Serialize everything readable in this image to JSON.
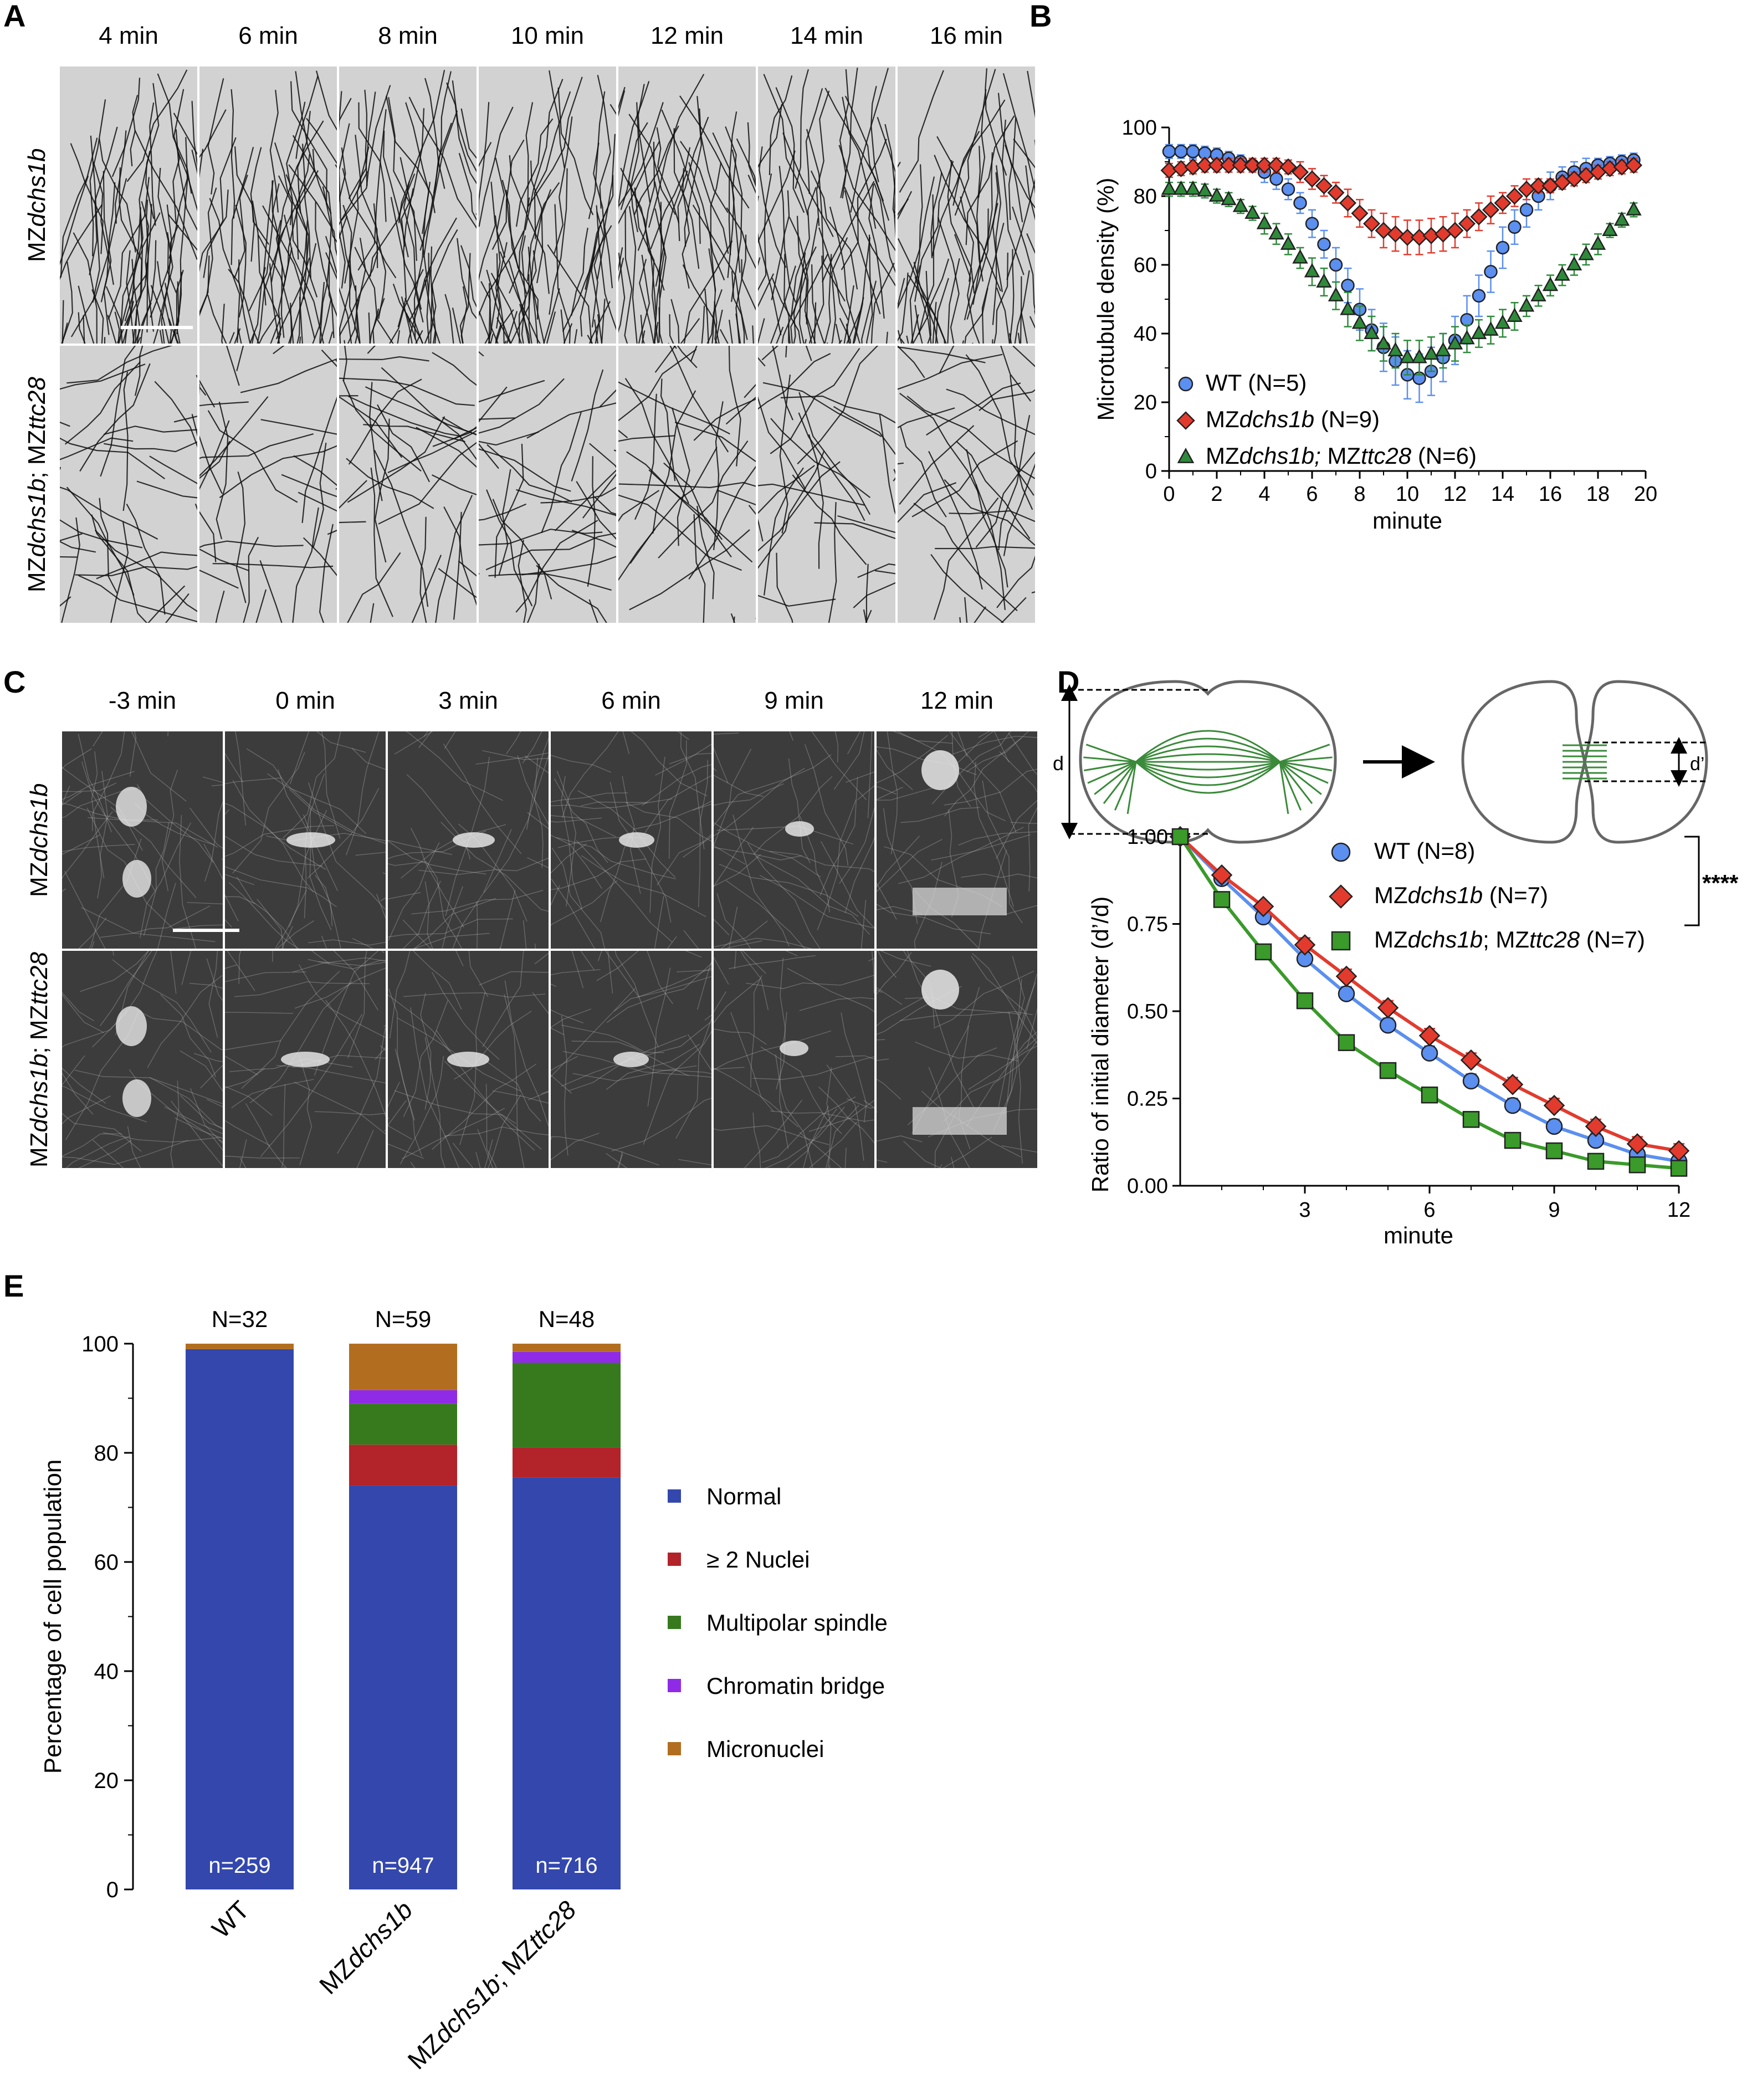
{
  "panels": {
    "A": "A",
    "B": "B",
    "C": "C",
    "D": "D",
    "E": "E"
  },
  "panel_a": {
    "time_labels": [
      "4 min",
      "6 min",
      "8 min",
      "10 min",
      "12 min",
      "14 min",
      "16 min"
    ],
    "rows": [
      {
        "prefix": "MZ",
        "gene": "dchs1b"
      },
      {
        "prefix": "MZ",
        "gene": "dchs1b",
        "sep": "; MZ",
        "gene2": "ttc28"
      }
    ]
  },
  "panel_c": {
    "time_labels": [
      "-3 min",
      "0 min",
      "3 min",
      "6 min",
      "9 min",
      "12 min"
    ],
    "rows": [
      {
        "prefix": "MZ",
        "gene": "dchs1b"
      },
      {
        "prefix": "MZ",
        "gene": "dchs1b",
        "sep": "; MZ",
        "gene2": "ttc28"
      }
    ]
  },
  "chart_data": [
    {
      "panel": "B",
      "type": "scatter",
      "xlabel": "minute",
      "ylabel": "Microtubule density (%)",
      "xlim": [
        0,
        20
      ],
      "ylim": [
        0,
        100
      ],
      "xticks": [
        0,
        2,
        4,
        6,
        8,
        10,
        12,
        14,
        16,
        18,
        20
      ],
      "yticks": [
        0,
        20,
        40,
        60,
        80,
        100
      ],
      "legend_position": "lower-left",
      "series": [
        {
          "name": "WT (N=5)",
          "color": "#5b8ff0",
          "marker": "circle",
          "x": [
            0,
            0.5,
            1,
            1.5,
            2,
            2.5,
            3,
            3.5,
            4,
            4.5,
            5,
            5.5,
            6,
            6.5,
            7,
            7.5,
            8,
            8.5,
            9,
            9.5,
            10,
            10.5,
            11,
            11.5,
            12,
            12.5,
            13,
            13.5,
            14,
            14.5,
            15,
            15.5,
            16,
            16.5,
            17,
            17.5,
            18,
            18.5,
            19,
            19.5
          ],
          "y": [
            93,
            93,
            93,
            92.5,
            92,
            91,
            90,
            89,
            87,
            85,
            82,
            78,
            72,
            66,
            60,
            54,
            47,
            41,
            36,
            32,
            28,
            27,
            29,
            33,
            38,
            44,
            51,
            58,
            65,
            71,
            76,
            80,
            83,
            85.5,
            87,
            88,
            89,
            89.5,
            90,
            90.5
          ],
          "err": [
            2,
            2,
            2,
            2,
            2,
            2,
            2,
            2,
            3,
            3,
            3,
            3,
            4,
            4,
            5,
            5,
            6,
            6,
            7,
            7,
            7,
            7,
            7,
            7,
            7,
            7,
            6,
            6,
            6,
            5,
            5,
            4,
            4,
            3,
            3,
            3,
            2,
            2,
            2,
            2
          ]
        },
        {
          "name": "MZdchs1b (N=9)",
          "name_parts": [
            "MZ",
            "dchs1b",
            " (N=9)"
          ],
          "color": "#e23b2e",
          "marker": "diamond",
          "x": [
            0,
            0.5,
            1,
            1.5,
            2,
            2.5,
            3,
            3.5,
            4,
            4.5,
            5,
            5.5,
            6,
            6.5,
            7,
            7.5,
            8,
            8.5,
            9,
            9.5,
            10,
            10.5,
            11,
            11.5,
            12,
            12.5,
            13,
            13.5,
            14,
            14.5,
            15,
            15.5,
            16,
            16.5,
            17,
            17.5,
            18,
            18.5,
            19,
            19.5
          ],
          "y": [
            87.5,
            88,
            88.5,
            89,
            89,
            89,
            89,
            89,
            89,
            89,
            88.5,
            87,
            85,
            83,
            81,
            78,
            75,
            72,
            70,
            69,
            68,
            68,
            68.5,
            69,
            70,
            72,
            74,
            76,
            78,
            80,
            82,
            83,
            83,
            84,
            85,
            86,
            87,
            88,
            88.5,
            89
          ],
          "err": [
            2,
            2,
            2,
            2,
            2,
            2,
            2,
            2,
            2,
            2,
            2,
            3,
            3,
            3,
            3,
            4,
            4,
            4,
            5,
            5,
            5,
            5,
            5,
            5,
            5,
            4,
            4,
            4,
            3,
            3,
            3,
            2,
            2,
            2,
            2,
            2,
            2,
            2,
            2,
            2
          ]
        },
        {
          "name": "MZdchs1b; MZttc28 (N=6)",
          "name_parts": [
            "MZ",
            "dchs1b; ",
            "MZ",
            "ttc28",
            " (N=6)"
          ],
          "color": "#2e8a3a",
          "marker": "triangle",
          "x": [
            0,
            0.5,
            1,
            1.5,
            2,
            2.5,
            3,
            3.5,
            4,
            4.5,
            5,
            5.5,
            6,
            6.5,
            7,
            7.5,
            8,
            8.5,
            9,
            9.5,
            10,
            10.5,
            11,
            11.5,
            12,
            12.5,
            13,
            13.5,
            14,
            14.5,
            15,
            15.5,
            16,
            16.5,
            17,
            17.5,
            18,
            18.5,
            19,
            19.5
          ],
          "y": [
            82,
            82,
            82,
            81.5,
            80,
            79,
            77,
            75,
            72,
            69,
            66,
            62,
            58,
            55,
            51,
            47,
            43,
            40,
            37,
            35,
            33,
            33,
            34,
            35,
            37,
            38.5,
            40,
            41,
            43,
            45,
            48,
            51,
            54,
            57,
            60,
            63,
            66,
            70,
            73,
            76
          ],
          "err": [
            2,
            2,
            2,
            2,
            2,
            2,
            2,
            2,
            3,
            3,
            3,
            3,
            4,
            4,
            4,
            5,
            5,
            5,
            5,
            5,
            5,
            5,
            5,
            5,
            5,
            4,
            4,
            4,
            4,
            4,
            3,
            3,
            3,
            3,
            3,
            3,
            3,
            2,
            2,
            2
          ]
        }
      ]
    },
    {
      "panel": "D",
      "type": "line",
      "xlabel": "minute",
      "ylabel": "Ratio of initial diameter  (d’/d)",
      "xlim": [
        0,
        12
      ],
      "ylim": [
        0,
        1.0
      ],
      "xticks": [
        3,
        6,
        9,
        12
      ],
      "yticks": [
        0.0,
        0.25,
        0.5,
        0.75,
        1.0
      ],
      "ytick_labels": [
        "0.00",
        "0.25",
        "0.50",
        "0.75",
        "1.00"
      ],
      "legend_position": "top-right",
      "significance": "****",
      "diagram_labels": {
        "d": "d",
        "d_prime": "d’"
      },
      "series": [
        {
          "name": "WT (N=8)",
          "color": "#5b8ff0",
          "marker": "circle",
          "x": [
            0,
            1,
            2,
            3,
            4,
            5,
            6,
            7,
            8,
            9,
            10,
            11,
            12
          ],
          "y": [
            1.0,
            0.88,
            0.77,
            0.65,
            0.55,
            0.46,
            0.38,
            0.3,
            0.23,
            0.17,
            0.13,
            0.09,
            0.07
          ],
          "err": [
            0,
            0.01,
            0.01,
            0.02,
            0.02,
            0.02,
            0.02,
            0.02,
            0.02,
            0.02,
            0.02,
            0.02,
            0.01
          ]
        },
        {
          "name": "MZdchs1b (N=7)",
          "name_parts": [
            "MZ",
            "dchs1b",
            " (N=7)"
          ],
          "color": "#e23b2e",
          "marker": "diamond",
          "x": [
            0,
            1,
            2,
            3,
            4,
            5,
            6,
            7,
            8,
            9,
            10,
            11,
            12
          ],
          "y": [
            1.0,
            0.89,
            0.8,
            0.69,
            0.6,
            0.51,
            0.43,
            0.36,
            0.29,
            0.23,
            0.17,
            0.12,
            0.1
          ],
          "err": [
            0,
            0.01,
            0.01,
            0.02,
            0.02,
            0.02,
            0.02,
            0.02,
            0.02,
            0.02,
            0.02,
            0.02,
            0.02
          ]
        },
        {
          "name": "MZdchs1b; MZttc28 (N=7)",
          "name_parts": [
            "MZ",
            "dchs1b",
            "; MZ",
            "ttc28",
            " (N=7)"
          ],
          "color": "#3a9a2a",
          "marker": "square",
          "x": [
            0,
            1,
            2,
            3,
            4,
            5,
            6,
            7,
            8,
            9,
            10,
            11,
            12
          ],
          "y": [
            1.0,
            0.82,
            0.67,
            0.53,
            0.41,
            0.33,
            0.26,
            0.19,
            0.13,
            0.1,
            0.07,
            0.06,
            0.05
          ],
          "err": [
            0,
            0.01,
            0.01,
            0.02,
            0.02,
            0.02,
            0.01,
            0.01,
            0.01,
            0.01,
            0.01,
            0.01,
            0.01
          ]
        }
      ]
    },
    {
      "panel": "E",
      "type": "bar",
      "stacked": true,
      "ylabel": "Percentage of cell population",
      "ylim": [
        0,
        100
      ],
      "yticks": [
        0,
        20,
        40,
        60,
        80,
        100
      ],
      "categories": [
        "WT",
        "MZdchs1b",
        "MZdchs1b; MZttc28"
      ],
      "category_parts": [
        [
          "WT"
        ],
        [
          "MZ",
          "dchs1b"
        ],
        [
          "MZ",
          "dchs1b",
          "; MZ",
          "ttc28"
        ]
      ],
      "top_labels": [
        "N=32",
        "N=59",
        "N=48"
      ],
      "bottom_labels": [
        "n=259",
        "n=947",
        "n=716"
      ],
      "legend_position": "right",
      "series": [
        {
          "name": "Normal",
          "color": "#3347ad",
          "values": [
            99,
            74,
            75.5
          ]
        },
        {
          "name": "≥ 2 Nuclei",
          "color": "#b3232a",
          "values": [
            0,
            7.5,
            5.5
          ]
        },
        {
          "name": "Multipolar spindle",
          "color": "#377a1e",
          "values": [
            0,
            7.5,
            15.5
          ]
        },
        {
          "name": "Chromatin bridge",
          "color": "#8f2be6",
          "values": [
            0,
            2.5,
            2
          ]
        },
        {
          "name": "Micronuclei",
          "color": "#b26e1e",
          "values": [
            1,
            8.5,
            1.5
          ]
        }
      ]
    }
  ]
}
